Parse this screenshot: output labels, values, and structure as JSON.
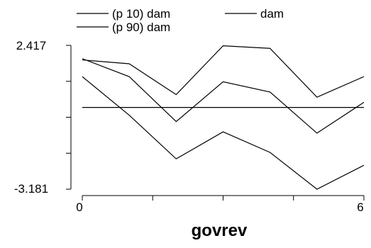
{
  "chart_data": {
    "type": "line",
    "xlabel": "govrev",
    "ylabel": "",
    "xlim": [
      0,
      6
    ],
    "ylim": [
      -3.181,
      2.417
    ],
    "x_ticks_labeled": [
      "0",
      "6"
    ],
    "y_ticks_labeled": [
      "-3.181",
      "2.417"
    ],
    "x": [
      0,
      1,
      2,
      3,
      4,
      5,
      6
    ],
    "series": [
      {
        "name": "(p 10) dam",
        "values": [
          1.2,
          -0.3,
          -2.0,
          -0.95,
          -1.75,
          -3.181,
          -2.25
        ]
      },
      {
        "name": "dam",
        "values": [
          0.0,
          0.0,
          0.0,
          0.0,
          0.0,
          0.0,
          0.0
        ]
      },
      {
        "name": "(p 90) dam",
        "values": [
          1.9,
          1.2,
          -0.55,
          1.0,
          0.6,
          -1.0,
          0.2
        ]
      },
      {
        "name": "",
        "values": [
          1.85,
          1.7,
          0.5,
          2.4,
          2.3,
          0.4,
          1.2
        ]
      }
    ],
    "legend": {
      "placement": "top",
      "entries": [
        "(p 10) dam",
        "dam",
        "(p 90) dam"
      ]
    },
    "grid": false
  }
}
